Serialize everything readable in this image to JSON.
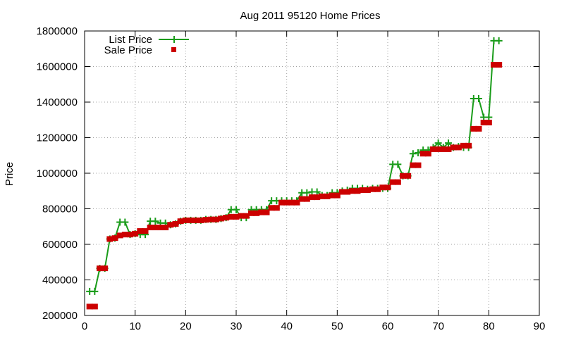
{
  "chart_data": {
    "type": "line",
    "title": "Aug 2011 95120 Home Prices",
    "xlabel": "",
    "ylabel": "Price",
    "xlim": [
      0,
      90
    ],
    "ylim": [
      200000,
      1800000
    ],
    "xticks": [
      "0",
      "10",
      "20",
      "30",
      "40",
      "50",
      "60",
      "70",
      "80",
      "90"
    ],
    "yticks": [
      "200000",
      "400000",
      "600000",
      "800000",
      "1000000",
      "1200000",
      "1400000",
      "1600000",
      "1800000"
    ],
    "grid": true,
    "legend_position": "top-left",
    "series": [
      {
        "name": "List Price",
        "style": "line-points",
        "color": "#1a9c1a",
        "marker": "plus",
        "x": [
          1,
          2,
          3,
          4,
          5,
          6,
          7,
          8,
          9,
          10,
          11,
          12,
          13,
          14,
          15,
          16,
          17,
          18,
          19,
          20,
          21,
          22,
          23,
          24,
          25,
          26,
          27,
          28,
          29,
          30,
          31,
          32,
          33,
          34,
          35,
          36,
          37,
          38,
          39,
          40,
          41,
          42,
          43,
          44,
          45,
          46,
          47,
          48,
          49,
          50,
          51,
          52,
          53,
          54,
          55,
          56,
          57,
          58,
          59,
          60,
          61,
          62,
          63,
          64,
          65,
          66,
          67,
          68,
          69,
          70,
          71,
          72,
          73,
          74,
          75,
          76,
          77,
          78,
          79,
          80,
          81,
          82
        ],
        "y": [
          335000,
          335000,
          465000,
          465000,
          630000,
          635000,
          725000,
          725000,
          655000,
          660000,
          655000,
          655000,
          730000,
          730000,
          720000,
          720000,
          710000,
          715000,
          730000,
          735000,
          735000,
          735000,
          735000,
          740000,
          740000,
          740000,
          745000,
          750000,
          795000,
          795000,
          750000,
          750000,
          795000,
          795000,
          795000,
          795000,
          845000,
          845000,
          845000,
          845000,
          845000,
          845000,
          890000,
          890000,
          895000,
          895000,
          875000,
          875000,
          890000,
          890000,
          900000,
          905000,
          915000,
          915000,
          915000,
          910000,
          915000,
          915000,
          915000,
          915000,
          1050000,
          1050000,
          985000,
          985000,
          1110000,
          1115000,
          1130000,
          1130000,
          1145000,
          1170000,
          1145000,
          1170000,
          1145000,
          1150000,
          1145000,
          1145000,
          1420000,
          1420000,
          1315000,
          1315000,
          1745000,
          1745000
        ]
      },
      {
        "name": "Sale Price",
        "style": "points",
        "color": "#cc0000",
        "marker": "square",
        "x": [
          1,
          2,
          3,
          4,
          5,
          6,
          7,
          8,
          9,
          10,
          11,
          12,
          13,
          14,
          15,
          16,
          17,
          18,
          19,
          20,
          21,
          22,
          23,
          24,
          25,
          26,
          27,
          28,
          29,
          30,
          31,
          32,
          33,
          34,
          35,
          36,
          37,
          38,
          39,
          40,
          41,
          42,
          43,
          44,
          45,
          46,
          47,
          48,
          49,
          50,
          51,
          52,
          53,
          54,
          55,
          56,
          57,
          58,
          59,
          60,
          61,
          62,
          63,
          64,
          65,
          66,
          67,
          68,
          69,
          70,
          71,
          72,
          73,
          74,
          75,
          76,
          77,
          78,
          79,
          80,
          81,
          82
        ],
        "y": [
          250000,
          250000,
          465000,
          465000,
          630000,
          635000,
          650000,
          655000,
          655000,
          660000,
          675000,
          675000,
          695000,
          695000,
          695000,
          695000,
          710000,
          715000,
          730000,
          735000,
          735000,
          735000,
          735000,
          738000,
          740000,
          740000,
          745000,
          750000,
          755000,
          755000,
          760000,
          760000,
          775000,
          775000,
          780000,
          780000,
          805000,
          805000,
          835000,
          835000,
          835000,
          835000,
          855000,
          855000,
          865000,
          865000,
          870000,
          870000,
          875000,
          875000,
          895000,
          895000,
          900000,
          900000,
          905000,
          905000,
          910000,
          910000,
          920000,
          920000,
          950000,
          950000,
          985000,
          985000,
          1045000,
          1045000,
          1110000,
          1110000,
          1135000,
          1135000,
          1135000,
          1135000,
          1145000,
          1145000,
          1155000,
          1155000,
          1250000,
          1250000,
          1285000,
          1285000,
          1610000,
          1610000
        ]
      }
    ]
  }
}
